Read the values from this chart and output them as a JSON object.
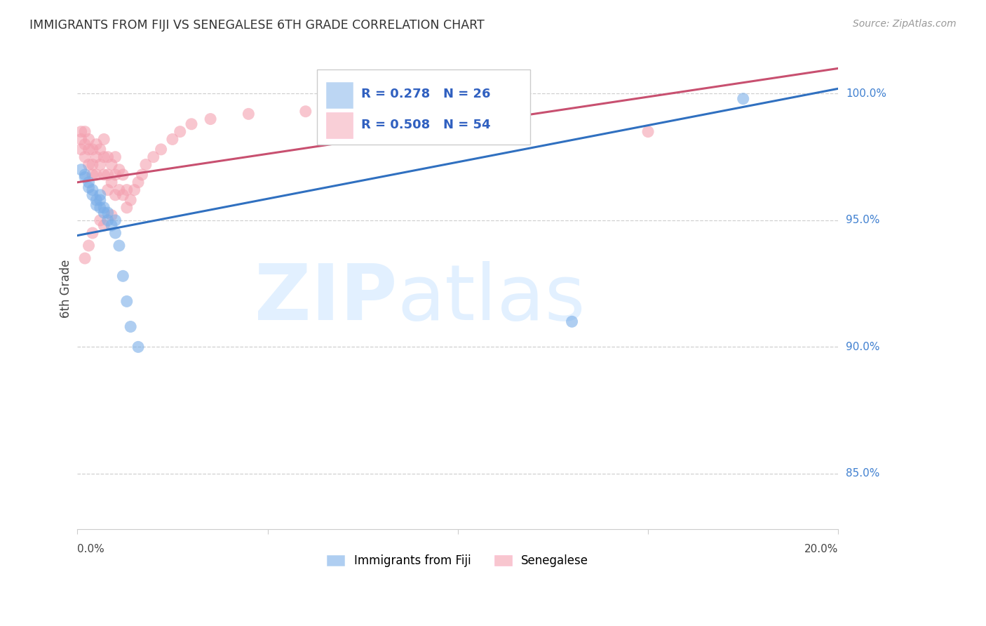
{
  "title": "IMMIGRANTS FROM FIJI VS SENEGALESE 6TH GRADE CORRELATION CHART",
  "source": "Source: ZipAtlas.com",
  "ylabel": "6th Grade",
  "yaxis_labels": [
    "100.0%",
    "95.0%",
    "90.0%",
    "85.0%"
  ],
  "yaxis_values": [
    1.0,
    0.95,
    0.9,
    0.85
  ],
  "xmin": 0.0,
  "xmax": 0.2,
  "ymin": 0.828,
  "ymax": 1.018,
  "legend_blue_r": "R = 0.278",
  "legend_blue_n": "N = 26",
  "legend_pink_r": "R = 0.508",
  "legend_pink_n": "N = 54",
  "blue_color": "#7aaee8",
  "pink_color": "#f4a0b0",
  "blue_line_color": "#3070c0",
  "pink_line_color": "#c85070",
  "fiji_x": [
    0.001,
    0.002,
    0.002,
    0.003,
    0.003,
    0.004,
    0.004,
    0.005,
    0.005,
    0.006,
    0.006,
    0.006,
    0.007,
    0.007,
    0.008,
    0.008,
    0.009,
    0.01,
    0.01,
    0.011,
    0.012,
    0.013,
    0.014,
    0.016,
    0.175,
    0.13
  ],
  "fiji_y": [
    0.97,
    0.967,
    0.968,
    0.965,
    0.963,
    0.962,
    0.96,
    0.958,
    0.956,
    0.96,
    0.955,
    0.958,
    0.953,
    0.955,
    0.95,
    0.953,
    0.948,
    0.945,
    0.95,
    0.94,
    0.928,
    0.918,
    0.908,
    0.9,
    0.998,
    0.91
  ],
  "senegalese_x": [
    0.001,
    0.001,
    0.001,
    0.002,
    0.002,
    0.002,
    0.003,
    0.003,
    0.003,
    0.004,
    0.004,
    0.004,
    0.005,
    0.005,
    0.005,
    0.006,
    0.006,
    0.007,
    0.007,
    0.007,
    0.008,
    0.008,
    0.008,
    0.009,
    0.009,
    0.01,
    0.01,
    0.01,
    0.011,
    0.011,
    0.012,
    0.012,
    0.013,
    0.013,
    0.014,
    0.015,
    0.016,
    0.017,
    0.018,
    0.02,
    0.022,
    0.025,
    0.027,
    0.03,
    0.035,
    0.045,
    0.06,
    0.007,
    0.003,
    0.002,
    0.009,
    0.004,
    0.006,
    0.15
  ],
  "senegalese_y": [
    0.985,
    0.982,
    0.978,
    0.985,
    0.98,
    0.975,
    0.982,
    0.978,
    0.972,
    0.978,
    0.972,
    0.968,
    0.98,
    0.975,
    0.968,
    0.978,
    0.972,
    0.982,
    0.975,
    0.968,
    0.975,
    0.968,
    0.962,
    0.972,
    0.965,
    0.975,
    0.968,
    0.96,
    0.97,
    0.962,
    0.968,
    0.96,
    0.962,
    0.955,
    0.958,
    0.962,
    0.965,
    0.968,
    0.972,
    0.975,
    0.978,
    0.982,
    0.985,
    0.988,
    0.99,
    0.992,
    0.993,
    0.948,
    0.94,
    0.935,
    0.952,
    0.945,
    0.95,
    0.985
  ],
  "blue_trend_x0": 0.0,
  "blue_trend_y0": 0.944,
  "blue_trend_x1": 0.2,
  "blue_trend_y1": 1.002,
  "pink_trend_x0": 0.0,
  "pink_trend_y0": 0.965,
  "pink_trend_x1": 0.2,
  "pink_trend_y1": 1.01
}
